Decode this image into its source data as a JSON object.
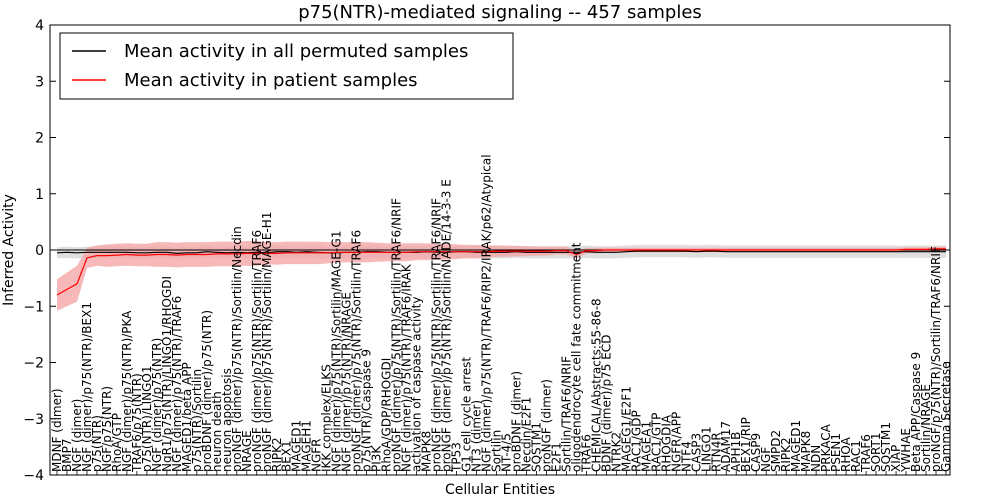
{
  "chart_data": {
    "type": "line",
    "title": "p75(NTR)-mediated signaling -- 457 samples",
    "xlabel": "Cellular Entities",
    "ylabel": "Inferred Activity",
    "ylim": [
      -4,
      4
    ],
    "yticks": [
      "4",
      "3",
      "2",
      "1",
      "0",
      "−1",
      "−2",
      "−3",
      "−4"
    ],
    "ytick_values": [
      4,
      3,
      2,
      1,
      0,
      -1,
      -2,
      -3,
      -4
    ],
    "grid": false,
    "legend_position": "top-left",
    "zero_line": true,
    "colors": {
      "patient": "#ff0000",
      "patient_band": "#f4a6a6",
      "permuted": "#000000",
      "permuted_band": "#d9d9d9",
      "axes": "#000000"
    },
    "categories": [
      "MDNF (dimer)",
      "BMP7",
      "NGF (dimer)",
      "NGF (dimer)/p75(NTR)/BEX1",
      "p75(NTR)",
      "NGF/p75(NTR)",
      "RhoA/GTP",
      "NGF (dimer)/p75(NTR)/PKA",
      "TRAF6/p75(NTR)",
      "p75(NTR)/LINGO1",
      "NGF (dimer)/p75(NTR)",
      "NgR1/p75(NTR)/LINGO1/RHOGDI",
      "NGF (dimer)/p75(NTR)/TRAF6",
      "MAGED1/beta APP",
      "p75(NTR)/Sortilin",
      "proBDNF (dimer)/p75(NTR)",
      "neuron death",
      "neuron apoptosis",
      "proNGF (dimer)/p75(NTR)/Sortilin/Necdin",
      "NRAGE",
      "proNGF (dimer)/p75(NTR)/Sortilin/TRAF6",
      "proNGF (dimer)/p75(NTR)/Sortilin/MAGE-H1",
      "RIPK2",
      "BEX1",
      "MAGED1",
      "MAGEH1",
      "NGFR",
      "IKK complex/ELKS",
      "NGF (dimer)/p75(NTR)/Sortilin/MAGE-G1",
      "NGF (dimer)/p75(NTR)/NRAGE",
      "proNGF (dimer)/p75(NTR)/Sortilin/TRAF6",
      "p75(NTR)/Caspase 9",
      "PI3K",
      "RhoA/GDP/RHOGDI",
      "proNGF (dimer)/p75(NTR)/Sortilin/TRAF6/NRIF",
      "NGF (dimer)/p75(NTR)/TRAF6/IRAK",
      "activation of caspase activity",
      "MAPK8",
      "proNGF (dimer)/p75(NTR)/Sortilin/TRAF6/NRIF",
      "proNGF (dimer)/p75(NTR)/Sortilin/NADE/14-3-3 E",
      "TP53",
      "G1 cell cycle arrest",
      "NT3 (dimer)",
      "NGF (dimer)/p75(NTR)/TRAF6/RIP2/IRAK/p62/Atypical",
      "Sortilin",
      "NT-4/5",
      "proBDNF (dimer)",
      "Necdin/E2F1",
      "SQSTM1",
      "proNGF (dimer)",
      "E2F1",
      "Sortilin/TRAF6/NRIF",
      "oligodendrocyte cell fate commitment",
      "TRAF6",
      "CHEMICAL/Abstracts:55-86-8",
      "BDNF (dimer)/p75 ECD",
      "NTRK2",
      "MAGEG1/E2F1",
      "RAC1/GDP",
      "MAGEA1",
      "RAC1/GTP",
      "RHOGDIA",
      "NGFR/APP",
      "NTF4",
      "CASP3",
      "LINGO1",
      "RTN4R",
      "ADAM17",
      "APH1B",
      "BEX1/RIP",
      "CASP9",
      "NGF",
      "SMPD2",
      "RIPK2",
      "MAGED1",
      "MAPK8",
      "NDN",
      "PRKACA",
      "PSEN1",
      "RHOA",
      "RAC1",
      "TRAF6",
      "SORT1",
      "SQSTM1",
      "XIAP",
      "YWHAE",
      "Beta APP/Caspase 9",
      "Sortilin/NRAGE",
      "proNGF/p75(NTR)/Sortilin/TRAF6/NRIF",
      "Gamma Secretase"
    ],
    "series": [
      {
        "name": "Mean activity in all permuted samples",
        "color": "#000000",
        "values": [
          -0.05,
          -0.04,
          -0.05,
          -0.04,
          -0.04,
          -0.04,
          -0.04,
          -0.04,
          -0.05,
          -0.05,
          -0.04,
          -0.04,
          -0.06,
          -0.05,
          -0.05,
          -0.03,
          -0.04,
          -0.05,
          -0.04,
          -0.05,
          -0.04,
          -0.05,
          -0.03,
          -0.03,
          -0.04,
          -0.03,
          -0.04,
          -0.05,
          -0.05,
          -0.04,
          -0.04,
          -0.03,
          -0.03,
          -0.04,
          -0.04,
          -0.04,
          -0.04,
          -0.03,
          -0.04,
          -0.04,
          -0.03,
          -0.03,
          -0.04,
          -0.04,
          -0.04,
          -0.04,
          -0.03,
          -0.04,
          -0.04,
          -0.04,
          -0.04,
          -0.04,
          -0.04,
          -0.03,
          -0.04,
          -0.04,
          -0.04,
          -0.03,
          -0.02,
          -0.02,
          -0.02,
          -0.02,
          -0.02,
          -0.02,
          -0.03,
          -0.02,
          -0.02,
          -0.03,
          -0.03,
          -0.03,
          -0.03,
          -0.03,
          -0.03,
          -0.03,
          -0.03,
          -0.03,
          -0.03,
          -0.03,
          -0.03,
          -0.03,
          -0.03,
          -0.03,
          -0.03,
          -0.03,
          -0.03,
          -0.03,
          -0.03,
          -0.03,
          -0.03,
          -0.03
        ],
        "band": [
          0.1,
          0.1,
          0.1,
          0.1,
          0.11,
          0.11,
          0.11,
          0.11,
          0.11,
          0.11,
          0.11,
          0.11,
          0.11,
          0.11,
          0.11,
          0.11,
          0.11,
          0.11,
          0.11,
          0.11,
          0.11,
          0.11,
          0.11,
          0.11,
          0.11,
          0.11,
          0.11,
          0.11,
          0.11,
          0.11,
          0.11,
          0.11,
          0.11,
          0.11,
          0.11,
          0.11,
          0.11,
          0.11,
          0.11,
          0.11,
          0.11,
          0.11,
          0.11,
          0.11,
          0.11,
          0.11,
          0.11,
          0.11,
          0.11,
          0.11,
          0.11,
          0.11,
          0.11,
          0.11,
          0.11,
          0.11,
          0.11,
          0.11,
          0.11,
          0.11,
          0.11,
          0.11,
          0.11,
          0.11,
          0.11,
          0.11,
          0.11,
          0.11,
          0.11,
          0.11,
          0.11,
          0.11,
          0.11,
          0.11,
          0.11,
          0.11,
          0.11,
          0.11,
          0.11,
          0.11,
          0.11,
          0.11,
          0.11,
          0.11,
          0.11,
          0.11,
          0.11,
          0.11,
          0.11,
          0.11
        ]
      },
      {
        "name": "Mean activity in patient samples",
        "color": "#ff0000",
        "values": [
          -0.8,
          -0.7,
          -0.6,
          -0.14,
          -0.1,
          -0.1,
          -0.09,
          -0.08,
          -0.09,
          -0.09,
          -0.08,
          -0.08,
          -0.09,
          -0.08,
          -0.08,
          -0.08,
          -0.07,
          -0.07,
          -0.07,
          -0.06,
          -0.06,
          -0.06,
          -0.06,
          -0.05,
          -0.05,
          -0.05,
          -0.05,
          -0.05,
          -0.04,
          -0.04,
          -0.04,
          -0.04,
          -0.04,
          -0.04,
          -0.04,
          -0.04,
          -0.03,
          -0.03,
          -0.03,
          -0.03,
          -0.03,
          -0.03,
          -0.03,
          -0.03,
          -0.02,
          -0.02,
          -0.02,
          -0.02,
          -0.02,
          -0.02,
          -0.01,
          -0.01,
          -0.08,
          -0.01,
          -0.01,
          0.0,
          0.0,
          0.0,
          0.0,
          0.0,
          0.0,
          0.0,
          0.0,
          0.0,
          0.0,
          0.0,
          0.0,
          0.0,
          0.0,
          0.0,
          0.0,
          0.0,
          0.0,
          0.0,
          0.0,
          0.0,
          0.0,
          0.0,
          0.0,
          0.0,
          0.0,
          0.0,
          0.0,
          0.0,
          0.0,
          0.01,
          0.01,
          0.01,
          0.02,
          0.02
        ],
        "band": [
          0.28,
          0.3,
          0.32,
          0.18,
          0.18,
          0.2,
          0.2,
          0.2,
          0.2,
          0.2,
          0.22,
          0.22,
          0.22,
          0.22,
          0.22,
          0.22,
          0.22,
          0.22,
          0.22,
          0.22,
          0.22,
          0.2,
          0.2,
          0.2,
          0.2,
          0.2,
          0.2,
          0.19,
          0.18,
          0.18,
          0.18,
          0.18,
          0.17,
          0.16,
          0.16,
          0.16,
          0.15,
          0.15,
          0.14,
          0.14,
          0.13,
          0.12,
          0.12,
          0.11,
          0.1,
          0.1,
          0.09,
          0.09,
          0.08,
          0.08,
          0.07,
          0.07,
          0.06,
          0.05,
          0.05,
          0.04,
          0.04,
          0.04,
          0.04,
          0.04,
          0.04,
          0.04,
          0.04,
          0.04,
          0.04,
          0.04,
          0.04,
          0.04,
          0.04,
          0.04,
          0.04,
          0.04,
          0.04,
          0.04,
          0.04,
          0.04,
          0.04,
          0.04,
          0.04,
          0.04,
          0.04,
          0.04,
          0.04,
          0.04,
          0.04,
          0.04,
          0.04,
          0.04,
          0.04,
          0.04
        ]
      }
    ]
  }
}
